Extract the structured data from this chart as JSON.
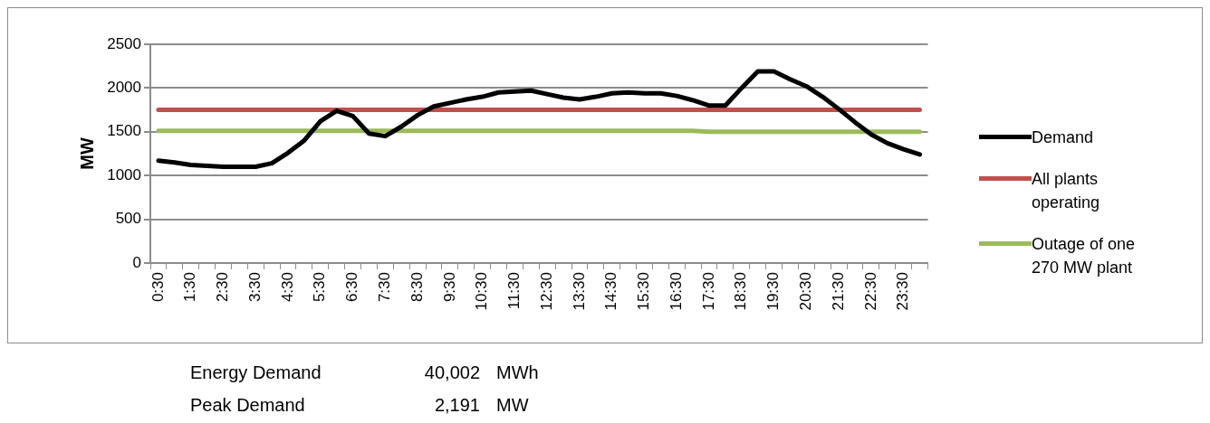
{
  "chart_data": {
    "type": "line",
    "ylabel": "MW",
    "categories": [
      "0:30",
      null,
      "1:30",
      null,
      "2:30",
      null,
      "3:30",
      null,
      "4:30",
      null,
      "5:30",
      null,
      "6:30",
      null,
      "7:30",
      null,
      "8:30",
      null,
      "9:30",
      null,
      "10:30",
      null,
      "11:30",
      null,
      "12:30",
      null,
      "13:30",
      null,
      "14:30",
      null,
      "15:30",
      null,
      "16:30",
      null,
      "17:30",
      null,
      "18:30",
      null,
      "19:30",
      null,
      "20:30",
      null,
      "21:30",
      null,
      "22:30",
      null,
      "23:30",
      null
    ],
    "series": [
      {
        "name": "Demand",
        "color": "#000000",
        "values": [
          1170,
          1150,
          1120,
          1110,
          1100,
          1100,
          1100,
          1140,
          1260,
          1400,
          1620,
          1740,
          1680,
          1480,
          1450,
          1560,
          1690,
          1790,
          1830,
          1870,
          1900,
          1950,
          1960,
          1970,
          1930,
          1890,
          1870,
          1900,
          1940,
          1950,
          1940,
          1940,
          1910,
          1860,
          1800,
          1800,
          2000,
          2191,
          2190,
          2100,
          2020,
          1900,
          1760,
          1610,
          1470,
          1370,
          1300,
          1240
        ]
      },
      {
        "name": "All plants operating",
        "color": "#c0504d",
        "values": [
          1750,
          1750,
          1750,
          1750,
          1750,
          1750,
          1750,
          1750,
          1750,
          1750,
          1750,
          1750,
          1750,
          1750,
          1750,
          1750,
          1750,
          1750,
          1750,
          1750,
          1750,
          1750,
          1750,
          1750,
          1750,
          1750,
          1750,
          1750,
          1750,
          1750,
          1750,
          1750,
          1750,
          1750,
          1750,
          1750,
          1750,
          1750,
          1750,
          1750,
          1750,
          1750,
          1750,
          1750,
          1750,
          1750,
          1750,
          1750
        ]
      },
      {
        "name": "Outage of one 270 MW plant",
        "color": "#9bbb59",
        "values": [
          1510,
          1510,
          1510,
          1510,
          1510,
          1510,
          1510,
          1510,
          1510,
          1510,
          1510,
          1510,
          1510,
          1510,
          1510,
          1510,
          1510,
          1510,
          1510,
          1510,
          1510,
          1510,
          1510,
          1510,
          1510,
          1510,
          1510,
          1510,
          1510,
          1510,
          1510,
          1510,
          1510,
          1510,
          1500,
          1500,
          1500,
          1500,
          1500,
          1500,
          1500,
          1500,
          1500,
          1500,
          1500,
          1500,
          1500,
          1500
        ]
      }
    ],
    "ylim": [
      0,
      2500
    ],
    "yticks": [
      0,
      500,
      1000,
      1500,
      2000,
      2500
    ],
    "grid": "y",
    "legend": "right",
    "marker": "none",
    "line_style": "solid",
    "annotations": [
      "Energy Demand\t40,002\tMWh",
      "Peak Demand\t2,191\tMW"
    ]
  }
}
